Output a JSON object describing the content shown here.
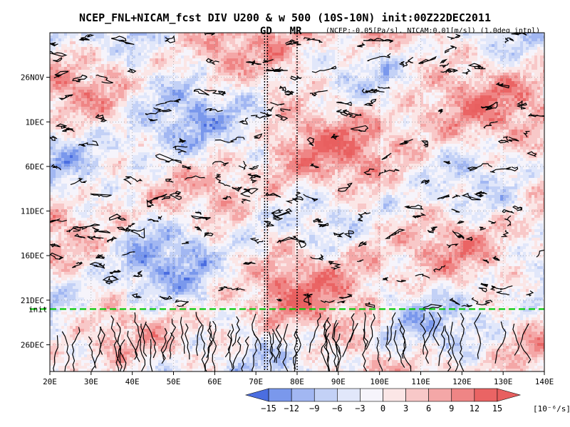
{
  "chart_data": {
    "type": "heatmap",
    "title": "NCEP_FNL+NICAM_fcst DIV U200 & w 500 (10S-10N) init:00Z22DEC2011",
    "subtitle": "(NCEP:-0.05[Pa/s], NICAM:0.01[m/s]) (1.0deg intpl)",
    "markers": [
      {
        "label": "GD",
        "lon": 72.8,
        "color": "#cc0000"
      },
      {
        "label": "MR",
        "lon": 80.0,
        "color": "#cc0000"
      }
    ],
    "init_line": {
      "label": "init",
      "date": "22DEC",
      "color": "#00cc00"
    },
    "xaxis": {
      "range": [
        20,
        140
      ],
      "ticks": [
        20,
        30,
        40,
        50,
        60,
        70,
        80,
        90,
        100,
        110,
        120,
        130,
        140
      ],
      "tick_labels": [
        "20E",
        "30E",
        "40E",
        "50E",
        "60E",
        "70E",
        "80E",
        "90E",
        "100E",
        "110E",
        "120E",
        "130E",
        "140E"
      ]
    },
    "yaxis": {
      "range_days": [
        "21NOV",
        "29DEC"
      ],
      "ticks": [
        "26NOV",
        "1DEC",
        "6DEC",
        "11DEC",
        "16DEC",
        "21DEC",
        "26DEC"
      ]
    },
    "colorbar": {
      "levels": [
        -15,
        -12,
        -9,
        -6,
        -3,
        0,
        3,
        6,
        9,
        12,
        15
      ],
      "tick_labels": [
        "−15",
        "−12",
        "−9",
        "−6",
        "−3",
        "0",
        "3",
        "6",
        "9",
        "12",
        "15"
      ],
      "units": "[10⁻⁶/s]",
      "colors": [
        "#4b6ee0",
        "#7a98ec",
        "#a2b7f2",
        "#c3d1f6",
        "#e1e7fa",
        "#f6f4fb",
        "#fbe6e6",
        "#f8c8c8",
        "#f4a7a7",
        "#ef8585",
        "#ea6464",
        "#e85f5f"
      ]
    },
    "grid": true,
    "legend": "bottom"
  }
}
